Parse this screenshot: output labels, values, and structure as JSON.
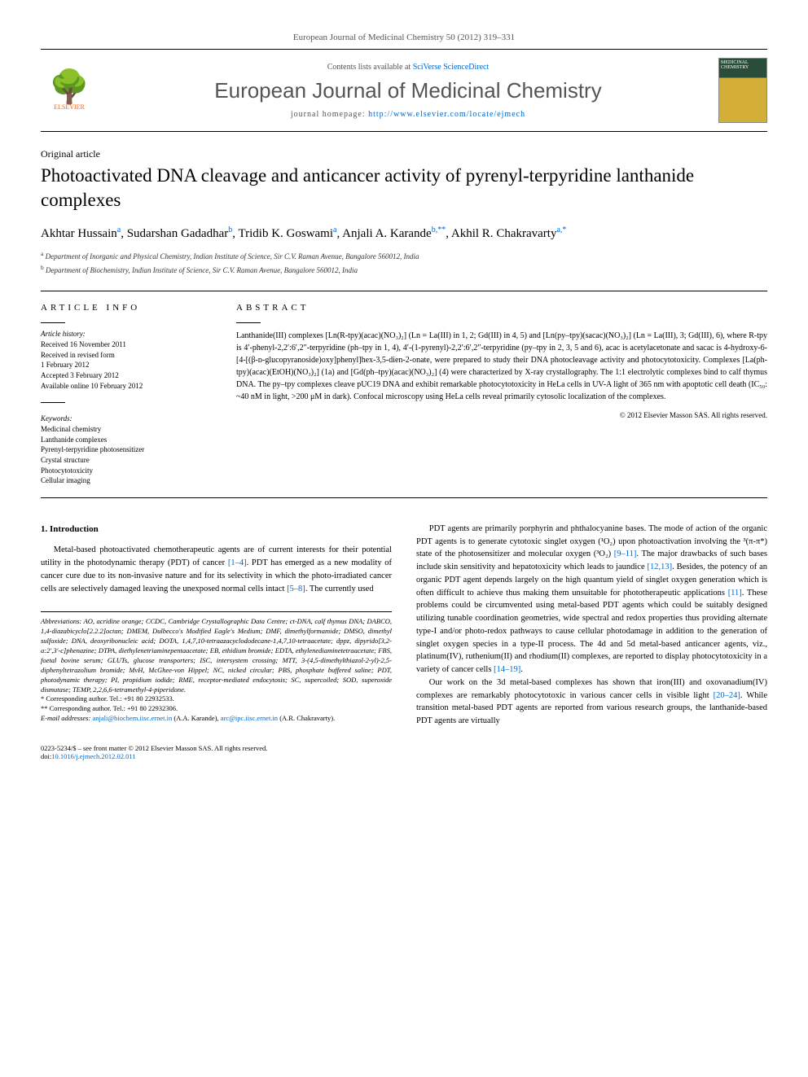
{
  "citation": "European Journal of Medicinal Chemistry 50 (2012) 319–331",
  "header": {
    "elsevier_label": "ELSEVIER",
    "contents_prefix": "Contents lists available at ",
    "contents_link": "SciVerse ScienceDirect",
    "journal_name": "European Journal of Medicinal Chemistry",
    "homepage_prefix": "journal homepage: ",
    "homepage_url": "http://www.elsevier.com/locate/ejmech"
  },
  "article_type": "Original article",
  "title": "Photoactivated DNA cleavage and anticancer activity of pyrenyl-terpyridine lanthanide complexes",
  "authors_html": "Akhtar Hussain<sup>a</sup>, Sudarshan Gadadhar<sup>b</sup>, Tridib K. Goswami<sup>a</sup>, Anjali A. Karande<sup>b,**</sup>, Akhil R. Chakravarty<sup>a,*</sup>",
  "affiliations": [
    {
      "sup": "a",
      "text": "Department of Inorganic and Physical Chemistry, Indian Institute of Science, Sir C.V. Raman Avenue, Bangalore 560012, India"
    },
    {
      "sup": "b",
      "text": "Department of Biochemistry, Indian Institute of Science, Sir C.V. Raman Avenue, Bangalore 560012, India"
    }
  ],
  "info_label": "ARTICLE INFO",
  "abstract_label": "ABSTRACT",
  "history_label": "Article history:",
  "history": [
    "Received 16 November 2011",
    "Received in revised form",
    "1 February 2012",
    "Accepted 3 February 2012",
    "Available online 10 February 2012"
  ],
  "keywords_label": "Keywords:",
  "keywords": [
    "Medicinal chemistry",
    "Lanthanide complexes",
    "Pyrenyl-terpyridine photosensitizer",
    "Crystal structure",
    "Photocytotoxicity",
    "Cellular imaging"
  ],
  "abstract": "Lanthanide(III) complexes [Ln(R-tpy)(acac)(NO₃)₂] (Ln = La(III) in 1, 2; Gd(III) in 4, 5) and [Ln(py–tpy)(sacac)(NO₃)₂] (Ln = La(III), 3; Gd(III), 6), where R-tpy is 4′-phenyl-2,2′:6′,2″-terpyridine (ph–tpy in 1, 4), 4′-(1-pyrenyl)-2,2′:6′,2″-terpyridine (py–tpy in 2, 3, 5 and 6), acac is acetylacetonate and sacac is 4-hydroxy-6-[4-[(β-ᴅ-glucopyranoside)oxy]phenyl]hex-3,5-dien-2-onate, were prepared to study their DNA photocleavage activity and photocytotoxicity. Complexes [La(ph-tpy)(acac)(EtOH)(NO₃)₂] (1a) and [Gd(ph–tpy)(acac)(NO₃)₂] (4) were characterized by X-ray crystallography. The 1:1 electrolytic complexes bind to calf thymus DNA. The py–tpy complexes cleave pUC19 DNA and exhibit remarkable photocytotoxicity in HeLa cells in UV-A light of 365 nm with apoptotic cell death (IC₅₀: ~40 nM in light, >200 μM in dark). Confocal microscopy using HeLa cells reveal primarily cytosolic localization of the complexes.",
  "copyright": "© 2012 Elsevier Masson SAS. All rights reserved.",
  "section_heading": "1. Introduction",
  "body_left": "Metal-based photoactivated chemotherapeutic agents are of current interests for their potential utility in the photodynamic therapy (PDT) of cancer [1–4]. PDT has emerged as a new modality of cancer cure due to its non-invasive nature and for its selectivity in which the photo-irradiated cancer cells are selectively damaged leaving the unexposed normal cells intact [5–8]. The currently used",
  "body_right_p1": "PDT agents are primarily porphyrin and phthalocyanine bases. The mode of action of the organic PDT agents is to generate cytotoxic singlet oxygen (¹O₂) upon photoactivation involving the ³(π-π*) state of the photosensitizer and molecular oxygen (³O₂) [9–11]. The major drawbacks of such bases include skin sensitivity and hepatotoxicity which leads to jaundice [12,13]. Besides, the potency of an organic PDT agent depends largely on the high quantum yield of singlet oxygen generation which is often difficult to achieve thus making them unsuitable for phototherapeutic applications [11]. These problems could be circumvented using metal-based PDT agents which could be suitably designed utilizing tunable coordination geometries, wide spectral and redox properties thus providing alternate type-I and/or photo-redox pathways to cause cellular photodamage in addition to the generation of singlet oxygen species in a type-II process. The 4d and 5d metal-based anticancer agents, viz., platinum(IV), ruthenium(II) and rhodium(II) complexes, are reported to display photocytotoxicity in a variety of cancer cells [14–19].",
  "body_right_p2": "Our work on the 3d metal-based complexes has shown that iron(III) and oxovanadium(IV) complexes are remarkably photocytotoxic in various cancer cells in visible light [20–24]. While transition metal-based PDT agents are reported from various research groups, the lanthanide-based PDT agents are virtually",
  "abbreviations": "Abbreviations: AO, acridine orange; CCDC, Cambridge Crystallographic Data Centre; ct-DNA, calf thymus DNA; DABCO, 1,4-diazabicyclo[2.2.2]octan; DMEM, Dulbecco's Modified Eagle's Medium; DMF, dimethylformamide; DMSO, dimethyl sulfoxide; DNA, deoxyribonucleic acid; DOTA, 1,4,7,10-tetraazacyclododecane-1,4,7,10-tetraacetate; dppz, dipyrido[3,2-a:2′,3′-c]phenazine; DTPA, diethylenetriaminepentaacetate; EB, ethidium bromide; EDTA, ethylenediaminetetraacetate; FBS, foetal bovine serum; GLUTs, glucose transporters; ISC, intersystem crossing; MTT, 3-(4,5-dimethylthiazol-2-yl)-2,5-diphenyltetrazolium bromide; MvH, McGhee-von Hippel; NC, nicked circular; PBS, phosphate buffered saline; PDT, photodynamic therapy; PI, propidium iodide; RME, receptor-mediated endocytosis; SC, supercoiled; SOD, superoxide dismutase; TEMP, 2,2,6,6-tetramethyl-4-piperidone.",
  "corr1": "* Corresponding author. Tel.: +91 80 22932533.",
  "corr2": "** Corresponding author. Tel.: +91 80 22932306.",
  "emails_prefix": "E-mail addresses: ",
  "email1": "anjali@biochem.iisc.ernet.in",
  "email1_aff": " (A.A. Karande), ",
  "email2": "arc@ipc.iisc.ernet.in",
  "email2_aff": " (A.R. Chakravarty).",
  "footer_line1": "0223-5234/$ – see front matter © 2012 Elsevier Masson SAS. All rights reserved.",
  "footer_doi_prefix": "doi:",
  "footer_doi": "10.1016/j.ejmech.2012.02.011"
}
